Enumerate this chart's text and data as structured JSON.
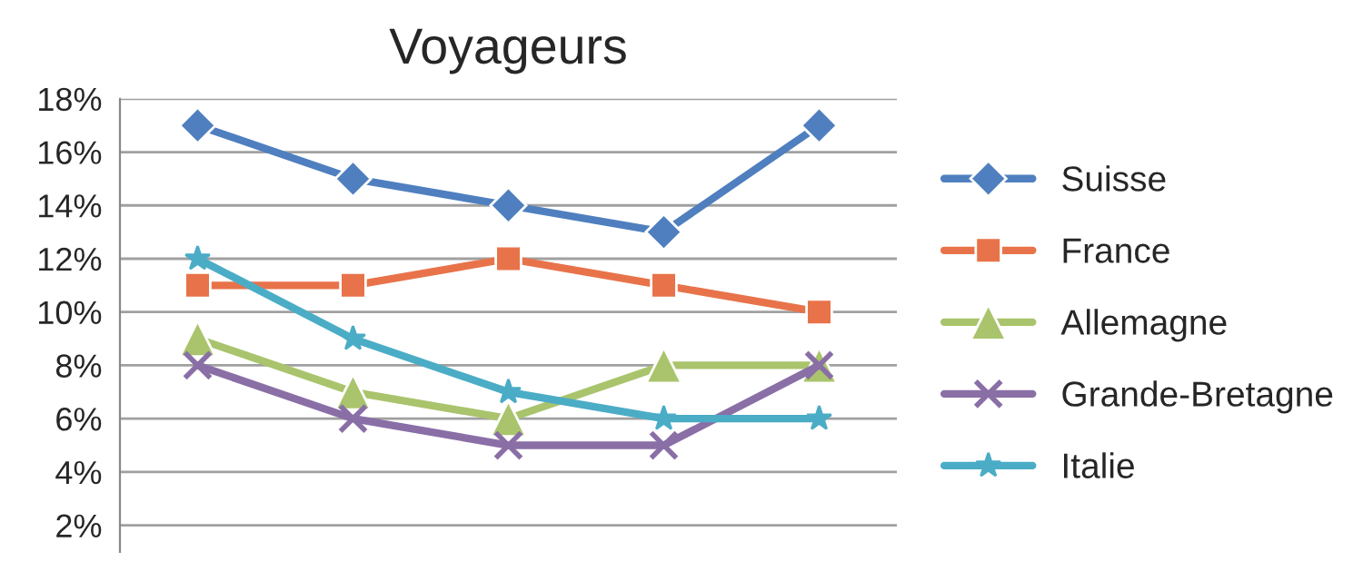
{
  "chart_data": {
    "type": "line",
    "title": "Voyageurs",
    "categories": [
      null,
      null,
      null,
      null,
      null
    ],
    "series": [
      {
        "name": "Suisse",
        "color": "#4f7fbf",
        "marker": "diamond",
        "values": [
          17,
          15,
          14,
          13,
          17
        ]
      },
      {
        "name": "France",
        "color": "#e8734a",
        "marker": "square",
        "values": [
          11,
          11,
          12,
          11,
          10
        ]
      },
      {
        "name": "Allemagne",
        "color": "#a9c46c",
        "marker": "triangle",
        "values": [
          9,
          7,
          6,
          8,
          8
        ]
      },
      {
        "name": "Grande-Bretagne",
        "color": "#8a6fa6",
        "marker": "cross",
        "values": [
          8,
          6,
          5,
          5,
          8
        ]
      },
      {
        "name": "Italie",
        "color": "#4bacc6",
        "marker": "star",
        "values": [
          12,
          9,
          7,
          6,
          6
        ]
      }
    ],
    "ylim": [
      1,
      18
    ],
    "yticks": [
      {
        "value": 2,
        "label": "2%"
      },
      {
        "value": 4,
        "label": "4%"
      },
      {
        "value": 6,
        "label": "6%"
      },
      {
        "value": 8,
        "label": "8%"
      },
      {
        "value": 10,
        "label": "10%"
      },
      {
        "value": 12,
        "label": "12%"
      },
      {
        "value": 14,
        "label": "14%"
      },
      {
        "value": 16,
        "label": "16%"
      },
      {
        "value": 18,
        "label": "18%"
      }
    ],
    "grid": "y",
    "legend": "right",
    "line_style": "solid"
  }
}
